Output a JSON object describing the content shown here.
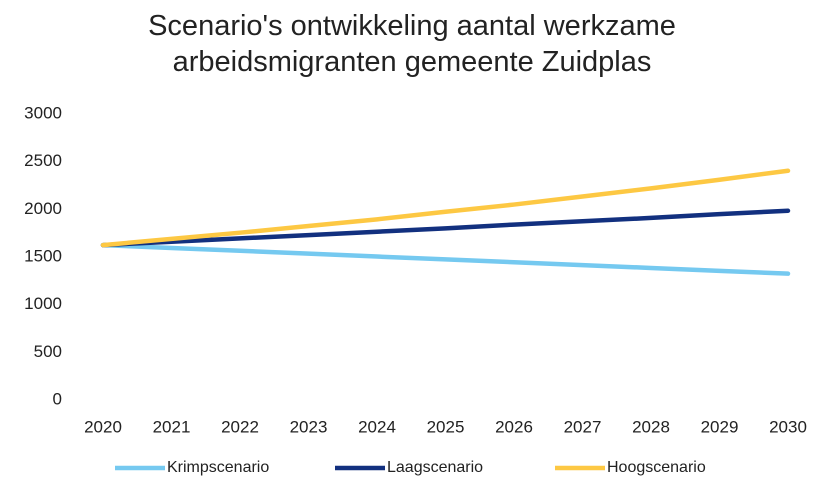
{
  "chart_data": {
    "type": "line",
    "title": "Scenario's ontwikkeling aantal werkzame arbeidsmigranten gemeente Zuidplas",
    "categories": [
      "2020",
      "2021",
      "2022",
      "2023",
      "2024",
      "2025",
      "2026",
      "2027",
      "2028",
      "2029",
      "2030"
    ],
    "series": [
      {
        "name": "Krimpscenario",
        "color": "#75c9f0",
        "values": [
          1625,
          1595,
          1565,
          1535,
          1505,
          1475,
          1445,
          1415,
          1385,
          1355,
          1325
        ]
      },
      {
        "name": "Laagscenario",
        "color": "#12307f",
        "values": [
          1625,
          1660,
          1695,
          1730,
          1765,
          1800,
          1840,
          1875,
          1910,
          1950,
          1985
        ]
      },
      {
        "name": "Hoogscenario",
        "color": "#fdc843",
        "values": [
          1625,
          1690,
          1755,
          1825,
          1895,
          1975,
          2050,
          2135,
          2220,
          2310,
          2405
        ]
      }
    ],
    "ylim": [
      0,
      3000
    ],
    "yticks": [
      0,
      500,
      1000,
      1500,
      2000,
      2500,
      3000
    ],
    "grid": false,
    "legend": "bottom"
  }
}
